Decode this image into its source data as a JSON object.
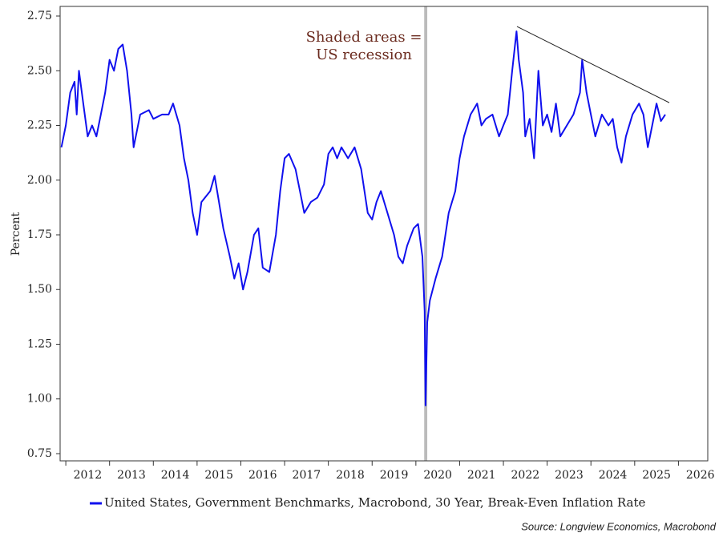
{
  "chart_data": {
    "type": "line",
    "y_label": "Percent",
    "annotation": [
      "Shaded areas =",
      "US recession"
    ],
    "source": "Source: Longview Economics, Macrobond",
    "xlim": [
      2011.87,
      2026.67
    ],
    "xticks": [
      2012,
      2013,
      2014,
      2015,
      2016,
      2017,
      2018,
      2019,
      2020,
      2021,
      2022,
      2023,
      2024,
      2025,
      2026
    ],
    "ylim": [
      0.717,
      2.794
    ],
    "yticks": [
      {
        "value": 2.75,
        "label": "2.75"
      },
      {
        "value": 2.5,
        "label": "2.50"
      },
      2.25,
      {
        "value": 2,
        "label": "2.00"
      },
      1.75,
      {
        "value": 1.5,
        "label": "1.50"
      },
      1.25,
      {
        "value": 1,
        "label": "1.00"
      },
      0.75
    ],
    "grid": false,
    "recession": {
      "color": "#bbbbbb",
      "x": [
        2020.19,
        2020.26
      ]
    },
    "trendline": {
      "color": "#222222",
      "x": [
        2022.31,
        2025.79
      ],
      "y": [
        2.702,
        2.354
      ]
    },
    "x": [
      2011.9,
      2012.0,
      2012.1,
      2012.2,
      2012.25,
      2012.3,
      2012.4,
      2012.5,
      2012.6,
      2012.7,
      2012.8,
      2012.9,
      2013.0,
      2013.1,
      2013.2,
      2013.3,
      2013.4,
      2013.5,
      2013.55,
      2013.7,
      2013.9,
      2014.0,
      2014.2,
      2014.35,
      2014.45,
      2014.6,
      2014.7,
      2014.8,
      2014.9,
      2015.0,
      2015.1,
      2015.3,
      2015.4,
      2015.5,
      2015.6,
      2015.75,
      2015.85,
      2015.95,
      2016.05,
      2016.15,
      2016.3,
      2016.4,
      2016.5,
      2016.65,
      2016.8,
      2016.9,
      2017.0,
      2017.1,
      2017.25,
      2017.35,
      2017.45,
      2017.6,
      2017.75,
      2017.9,
      2018.0,
      2018.1,
      2018.2,
      2018.3,
      2018.45,
      2018.6,
      2018.75,
      2018.9,
      2019.0,
      2019.1,
      2019.2,
      2019.35,
      2019.5,
      2019.6,
      2019.7,
      2019.8,
      2019.95,
      2020.05,
      2020.15,
      2020.2,
      2020.22,
      2020.26,
      2020.32,
      2020.45,
      2020.6,
      2020.75,
      2020.9,
      2021.0,
      2021.1,
      2021.25,
      2021.4,
      2021.5,
      2021.6,
      2021.75,
      2021.9,
      2022.0,
      2022.1,
      2022.2,
      2022.3,
      2022.35,
      2022.45,
      2022.5,
      2022.6,
      2022.7,
      2022.8,
      2022.9,
      2023.0,
      2023.1,
      2023.2,
      2023.3,
      2023.45,
      2023.6,
      2023.75,
      2023.8,
      2023.9,
      2024.0,
      2024.1,
      2024.25,
      2024.4,
      2024.5,
      2024.6,
      2024.7,
      2024.8,
      2024.95,
      2025.1,
      2025.2,
      2025.3,
      2025.4,
      2025.5,
      2025.6,
      2025.7
    ],
    "series": [
      {
        "name": "United States, Government Benchmarks, Macrobond, 30 Year, Break-Even Inflation Rate",
        "color": "#1010ee",
        "values": [
          2.15,
          2.25,
          2.4,
          2.45,
          2.3,
          2.5,
          2.35,
          2.2,
          2.25,
          2.2,
          2.3,
          2.4,
          2.55,
          2.5,
          2.6,
          2.62,
          2.5,
          2.3,
          2.15,
          2.3,
          2.32,
          2.28,
          2.3,
          2.3,
          2.35,
          2.25,
          2.1,
          2.0,
          1.85,
          1.75,
          1.9,
          1.95,
          2.02,
          1.9,
          1.78,
          1.65,
          1.55,
          1.62,
          1.5,
          1.58,
          1.75,
          1.78,
          1.6,
          1.58,
          1.75,
          1.95,
          2.1,
          2.12,
          2.05,
          1.95,
          1.85,
          1.9,
          1.92,
          1.98,
          2.12,
          2.15,
          2.1,
          2.15,
          2.1,
          2.15,
          2.05,
          1.85,
          1.82,
          1.9,
          1.95,
          1.85,
          1.75,
          1.65,
          1.62,
          1.7,
          1.78,
          1.8,
          1.65,
          1.4,
          0.97,
          1.35,
          1.45,
          1.55,
          1.65,
          1.85,
          1.95,
          2.1,
          2.2,
          2.3,
          2.35,
          2.25,
          2.28,
          2.3,
          2.2,
          2.25,
          2.3,
          2.5,
          2.68,
          2.55,
          2.4,
          2.2,
          2.28,
          2.1,
          2.5,
          2.25,
          2.3,
          2.22,
          2.35,
          2.2,
          2.25,
          2.3,
          2.4,
          2.55,
          2.4,
          2.3,
          2.2,
          2.3,
          2.25,
          2.28,
          2.15,
          2.08,
          2.2,
          2.3,
          2.35,
          2.3,
          2.15,
          2.25,
          2.35,
          2.27,
          2.3
        ]
      }
    ]
  }
}
